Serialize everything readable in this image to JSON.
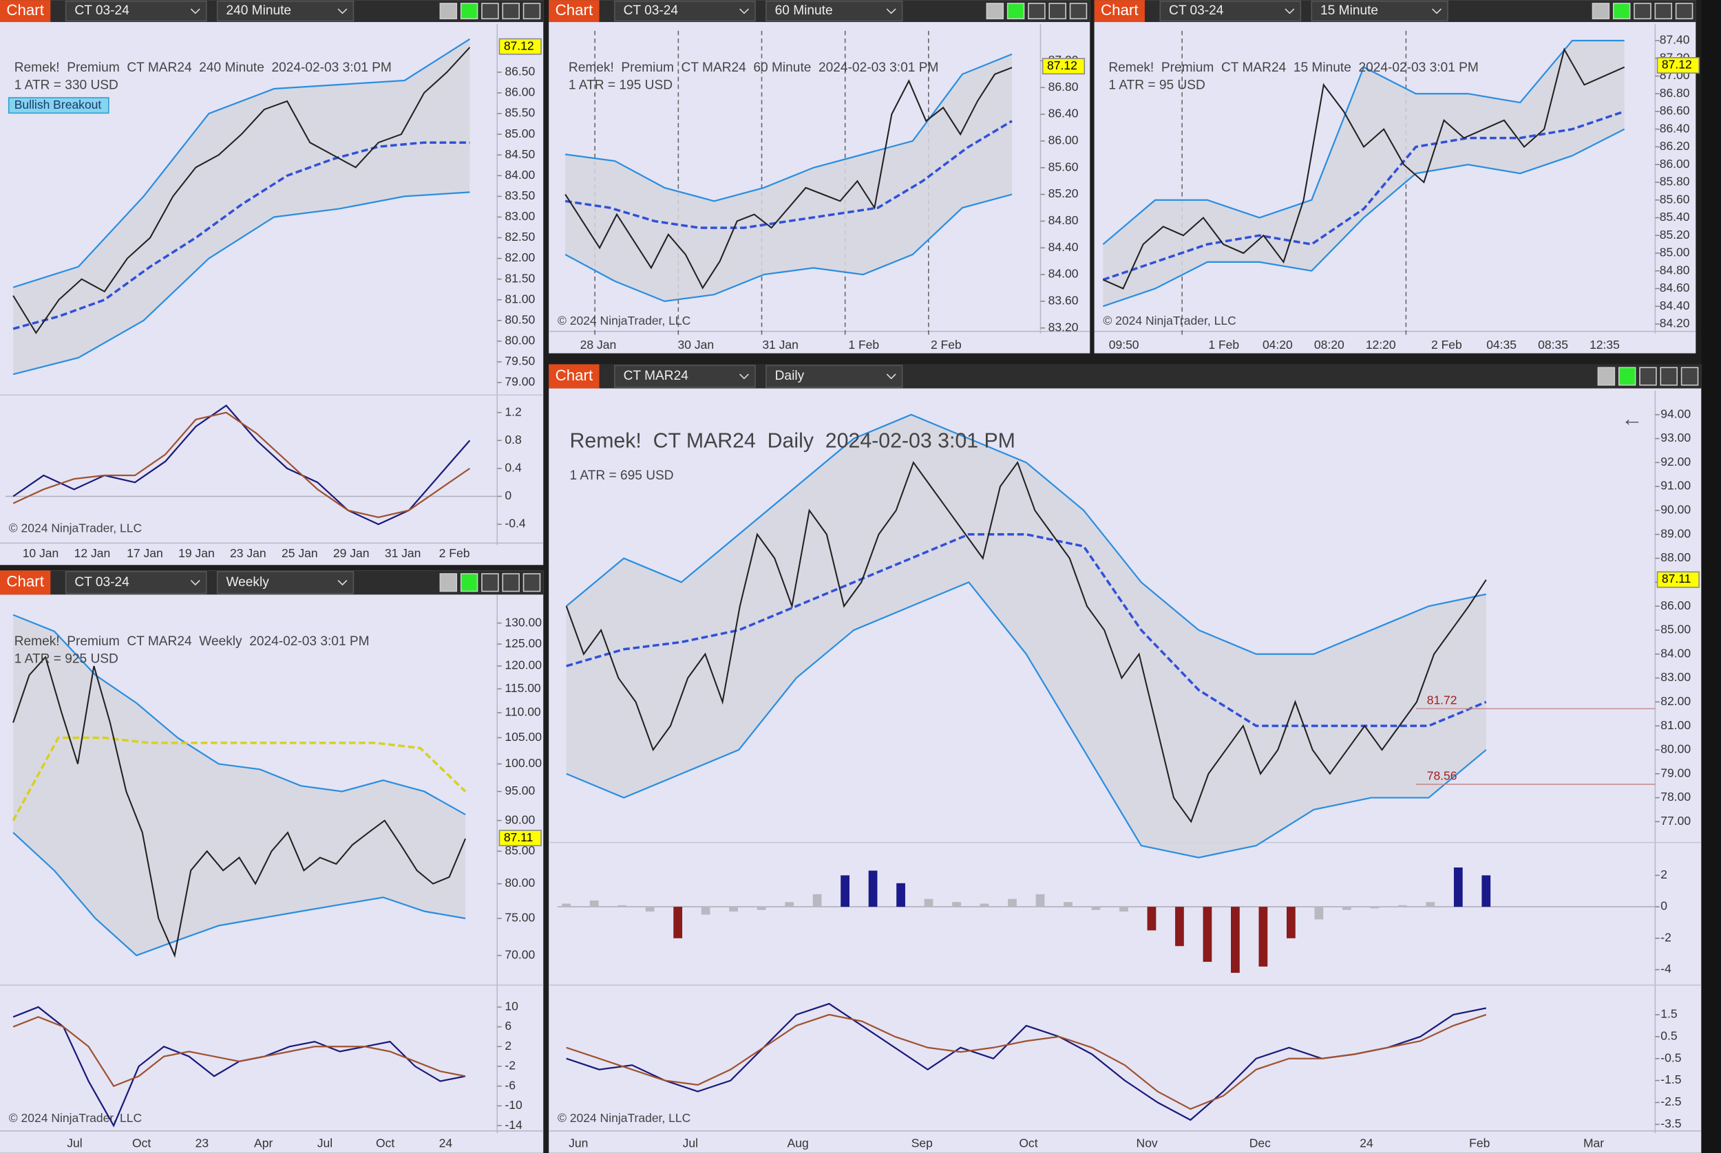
{
  "windows": [
    {
      "button": "Chart",
      "instrument": "CT 03-24",
      "interval": "240 Minute"
    },
    {
      "button": "Chart",
      "instrument": "CT 03-24",
      "interval": "60 Minute"
    },
    {
      "button": "Chart",
      "instrument": "CT 03-24",
      "interval": "15 Minute"
    },
    {
      "button": "Chart",
      "instrument": "CT 03-24",
      "interval": "Weekly"
    },
    {
      "button": "Chart",
      "instrument": "CT MAR24",
      "interval": "Daily"
    }
  ],
  "chart_data": [
    {
      "type": "line",
      "title": "Remek!  Premium  CT MAR24  240 Minute  2024-02-03 3:01 PM",
      "atr": "1 ATR = 330 USD",
      "badge": "Bullish Breakout",
      "copyright": "© 2024 NinjaTrader, LLC",
      "last_price": 87.12,
      "categories": [
        "10 Jan",
        "12 Jan",
        "17 Jan",
        "19 Jan",
        "23 Jan",
        "25 Jan",
        "29 Jan",
        "31 Jan",
        "2 Feb"
      ],
      "ylim": [
        78.7,
        87.5
      ],
      "yticks": [
        {
          "value": 86.5,
          "label": "86.50"
        },
        {
          "value": 86,
          "label": "86.00"
        },
        {
          "value": 85.5,
          "label": "85.50"
        },
        {
          "value": 85,
          "label": "85.00"
        },
        {
          "value": 84.5,
          "label": "84.50"
        },
        {
          "value": 84,
          "label": "84.00"
        },
        {
          "value": 83.5,
          "label": "83.50"
        },
        {
          "value": 83,
          "label": "83.00"
        },
        {
          "value": 82.5,
          "label": "82.50"
        },
        {
          "value": 82,
          "label": "82.00"
        },
        {
          "value": 81.5,
          "label": "81.50"
        },
        {
          "value": 81,
          "label": "81.00"
        },
        {
          "value": 80.5,
          "label": "80.50"
        },
        {
          "value": 80,
          "label": "80.00"
        },
        {
          "value": 79.5,
          "label": "79.50"
        },
        {
          "value": 79,
          "label": "79.00"
        }
      ],
      "price": {
        "color": "#222222",
        "values": [
          81.1,
          80.2,
          81.0,
          81.5,
          81.2,
          82.0,
          82.5,
          83.5,
          84.2,
          84.5,
          85.0,
          85.6,
          85.8,
          84.8,
          84.5,
          84.2,
          84.8,
          85.0,
          86.0,
          86.5,
          87.1
        ]
      },
      "ma": {
        "color": "#3050d8",
        "values": [
          80.3,
          80.6,
          81.0,
          81.8,
          82.5,
          83.3,
          84.0,
          84.4,
          84.7,
          84.8,
          84.8
        ]
      },
      "upper": {
        "color": "#2a8ee0",
        "values": [
          81.3,
          81.8,
          83.5,
          85.5,
          86.1,
          86.2,
          86.3,
          87.3
        ]
      },
      "lower": {
        "color": "#2a8ee0",
        "values": [
          79.2,
          79.6,
          80.5,
          82.0,
          83.0,
          83.2,
          83.5,
          83.6
        ]
      },
      "osc": {
        "ylim": [
          -0.59,
          1.42
        ],
        "yticks": [
          1.2,
          0.8,
          0.4,
          0,
          -0.4
        ],
        "series": [
          {
            "color": "#1a1a7a",
            "values": [
              0.0,
              0.3,
              0.1,
              0.3,
              0.2,
              0.5,
              1.0,
              1.3,
              0.8,
              0.4,
              0.2,
              -0.2,
              -0.4,
              -0.2,
              0.3,
              0.8
            ]
          },
          {
            "color": "#a0522d",
            "values": [
              -0.1,
              0.1,
              0.25,
              0.3,
              0.3,
              0.6,
              1.1,
              1.2,
              0.9,
              0.5,
              0.1,
              -0.2,
              -0.3,
              -0.2,
              0.1,
              0.4
            ]
          }
        ]
      }
    },
    {
      "type": "line",
      "title": "Remek!  Premium  CT MAR24  60 Minute  2024-02-03 3:01 PM",
      "atr": "1 ATR = 195 USD",
      "copyright": "© 2024 NinjaTrader, LLC",
      "last_price": 87.12,
      "categories": [
        "28 Jan",
        "30 Jan",
        "31 Jan",
        "1 Feb",
        "2 Feb"
      ],
      "ylim": [
        83.1,
        87.65
      ],
      "yticks": [
        {
          "value": 87.2,
          "label": "87.20"
        },
        {
          "value": 86.8,
          "label": "86.80"
        },
        {
          "value": 86.4,
          "label": "86.40"
        },
        {
          "value": 86,
          "label": "86.00"
        },
        {
          "value": 85.6,
          "label": "85.60"
        },
        {
          "value": 85.2,
          "label": "85.20"
        },
        {
          "value": 84.8,
          "label": "84.80"
        },
        {
          "value": 84.4,
          "label": "84.40"
        },
        {
          "value": 84,
          "label": "84.00"
        },
        {
          "value": 83.6,
          "label": "83.60"
        },
        {
          "value": 83.2,
          "label": "83.20"
        }
      ],
      "price": {
        "color": "#222222",
        "values": [
          85.2,
          84.8,
          84.4,
          84.9,
          84.5,
          84.1,
          84.6,
          84.3,
          83.8,
          84.2,
          84.8,
          84.9,
          84.7,
          85.0,
          85.3,
          85.2,
          85.1,
          85.4,
          85.0,
          86.4,
          86.9,
          86.3,
          86.5,
          86.1,
          86.6,
          87.0,
          87.1
        ]
      },
      "ma": {
        "color": "#3050d8",
        "values": [
          85.1,
          85.0,
          84.8,
          84.7,
          84.7,
          84.8,
          84.9,
          85.0,
          85.4,
          85.9,
          86.3
        ]
      },
      "upper": {
        "color": "#2a8ee0",
        "values": [
          85.8,
          85.7,
          85.3,
          85.1,
          85.3,
          85.6,
          85.8,
          86.0,
          87.0,
          87.3
        ]
      },
      "lower": {
        "color": "#2a8ee0",
        "values": [
          84.3,
          83.9,
          83.6,
          83.7,
          84.0,
          84.1,
          84.0,
          84.3,
          85.0,
          85.2
        ]
      }
    },
    {
      "type": "line",
      "title": "Remek!  Premium  CT MAR24  15 Minute  2024-02-03 3:01 PM",
      "atr": "1 ATR = 95 USD",
      "copyright": "© 2024 NinjaTrader, LLC",
      "last_price": 87.12,
      "categories": [
        "09:50",
        "1 Feb",
        "04:20",
        "08:20",
        "12:20",
        "2 Feb",
        "04:35",
        "08:35",
        "12:35"
      ],
      "ylim": [
        84.08,
        87.51
      ],
      "yticks": [
        {
          "value": 87.4,
          "label": "87.40"
        },
        {
          "value": 87.2,
          "label": "87.20"
        },
        {
          "value": 87,
          "label": "87.00"
        },
        {
          "value": 86.8,
          "label": "86.80"
        },
        {
          "value": 86.6,
          "label": "86.60"
        },
        {
          "value": 86.4,
          "label": "86.40"
        },
        {
          "value": 86.2,
          "label": "86.20"
        },
        {
          "value": 86,
          "label": "86.00"
        },
        {
          "value": 85.8,
          "label": "85.80"
        },
        {
          "value": 85.6,
          "label": "85.60"
        },
        {
          "value": 85.4,
          "label": "85.40"
        },
        {
          "value": 85.2,
          "label": "85.20"
        },
        {
          "value": 85,
          "label": "85.00"
        },
        {
          "value": 84.8,
          "label": "84.80"
        },
        {
          "value": 84.6,
          "label": "84.60"
        },
        {
          "value": 84.4,
          "label": "84.40"
        },
        {
          "value": 84.2,
          "label": "84.20"
        }
      ],
      "price": {
        "color": "#222222",
        "values": [
          84.7,
          84.6,
          85.1,
          85.3,
          85.2,
          85.4,
          85.1,
          85.0,
          85.2,
          84.9,
          85.6,
          86.9,
          86.6,
          86.2,
          86.4,
          86.0,
          85.8,
          86.5,
          86.3,
          86.4,
          86.5,
          86.2,
          86.4,
          87.3,
          86.9,
          87.0,
          87.1
        ]
      },
      "ma": {
        "color": "#3050d8",
        "values": [
          84.7,
          84.9,
          85.1,
          85.2,
          85.1,
          85.5,
          86.2,
          86.3,
          86.3,
          86.4,
          86.6
        ]
      },
      "upper": {
        "color": "#2a8ee0",
        "values": [
          85.1,
          85.6,
          85.6,
          85.4,
          85.6,
          87.1,
          86.8,
          86.8,
          86.7,
          87.4,
          87.4
        ]
      },
      "lower": {
        "color": "#2a8ee0",
        "values": [
          84.4,
          84.6,
          84.9,
          84.9,
          84.8,
          85.4,
          85.9,
          86.0,
          85.9,
          86.1,
          86.4
        ]
      }
    },
    {
      "type": "line",
      "title": "Remek!  Premium  CT MAR24  Weekly  2024-02-03 3:01 PM",
      "atr": "1 ATR = 925 USD",
      "copyright": "© 2024 NinjaTrader, LLC",
      "last_price": 87.11,
      "log_scale": true,
      "categories": [
        "Jul",
        "Oct",
        "23",
        "Apr",
        "Jul",
        "Oct",
        "24"
      ],
      "ylim": [
        66.65,
        135.4
      ],
      "yticks": [
        {
          "value": 130,
          "label": "130.00"
        },
        {
          "value": 125,
          "label": "125.00"
        },
        {
          "value": 120,
          "label": "120.00"
        },
        {
          "value": 115,
          "label": "115.00"
        },
        {
          "value": 110,
          "label": "110.00"
        },
        {
          "value": 105,
          "label": "105.00"
        },
        {
          "value": 100,
          "label": "100.00"
        },
        {
          "value": 95,
          "label": "95.00"
        },
        {
          "value": 90,
          "label": "90.00"
        },
        {
          "value": 85,
          "label": "85.00"
        },
        {
          "value": 80,
          "label": "80.00"
        },
        {
          "value": 75,
          "label": "75.00"
        },
        {
          "value": 70,
          "label": "70.00"
        }
      ],
      "price": {
        "color": "#222222",
        "values": [
          108,
          118,
          122,
          110,
          100,
          120,
          108,
          95,
          88,
          75,
          70,
          82,
          85,
          82,
          84,
          80,
          85,
          88,
          82,
          84,
          83,
          86,
          88,
          90,
          86,
          82,
          80,
          81,
          87
        ]
      },
      "ma": {
        "color": "#d8d020",
        "values": [
          90,
          105,
          105,
          104,
          104,
          104,
          104,
          104,
          104,
          103,
          95
        ]
      },
      "upper": {
        "color": "#2a8ee0",
        "values": [
          132,
          128,
          118,
          112,
          105,
          100,
          99,
          96,
          95,
          97,
          95,
          91
        ]
      },
      "lower": {
        "color": "#2a8ee0",
        "values": [
          88,
          82,
          75,
          70,
          72,
          74,
          75,
          76,
          77,
          78,
          76,
          75
        ]
      },
      "osc": {
        "ylim": [
          -15.3,
          14
        ],
        "yticks": [
          10,
          6,
          2,
          -2,
          -6,
          -10,
          -14
        ],
        "series": [
          {
            "color": "#1a1a7a",
            "values": [
              8,
              10,
              6,
              -5,
              -14,
              -2,
              2,
              0,
              -4,
              -1,
              0,
              2,
              3,
              1,
              2,
              3,
              -2,
              -5,
              -4
            ]
          },
          {
            "color": "#a0522d",
            "values": [
              6,
              8,
              6,
              2,
              -6,
              -4,
              0,
              1,
              0,
              -1,
              0,
              1,
              2,
              2,
              2,
              1,
              -1,
              -3,
              -4
            ]
          }
        ]
      }
    },
    {
      "type": "line",
      "title": "Remek!  CT MAR24  Daily  2024-02-03 3:01 PM",
      "atr": "1 ATR = 695 USD",
      "copyright": "© 2024 NinjaTrader, LLC",
      "last_price": 87.11,
      "levels": [
        81.72,
        78.56
      ],
      "categories": [
        "Jun",
        "Jul",
        "Aug",
        "Sep",
        "Oct",
        "Nov",
        "Dec",
        "24",
        "Feb",
        "Mar"
      ],
      "ylim": [
        76.13,
        94.73
      ],
      "yticks": [
        {
          "value": 94,
          "label": "94.00"
        },
        {
          "value": 93,
          "label": "93.00"
        },
        {
          "value": 92,
          "label": "92.00"
        },
        {
          "value": 91,
          "label": "91.00"
        },
        {
          "value": 90,
          "label": "90.00"
        },
        {
          "value": 89,
          "label": "89.00"
        },
        {
          "value": 88,
          "label": "88.00"
        },
        {
          "value": 87,
          "label": "87.00"
        },
        {
          "value": 86,
          "label": "86.00"
        },
        {
          "value": 85,
          "label": "85.00"
        },
        {
          "value": 84,
          "label": "84.00"
        },
        {
          "value": 83,
          "label": "83.00"
        },
        {
          "value": 82,
          "label": "82.00"
        },
        {
          "value": 81,
          "label": "81.00"
        },
        {
          "value": 80,
          "label": "80.00"
        },
        {
          "value": 79,
          "label": "79.00"
        },
        {
          "value": 78,
          "label": "78.00"
        },
        {
          "value": 77,
          "label": "77.00"
        }
      ],
      "price": {
        "color": "#222222",
        "values": [
          86,
          84,
          85,
          83,
          82,
          80,
          81,
          83,
          84,
          82,
          86,
          89,
          88,
          86,
          90,
          89,
          86,
          87,
          89,
          90,
          92,
          91,
          90,
          89,
          88,
          91,
          92,
          90,
          89,
          88,
          86,
          85,
          83,
          84,
          81,
          78,
          77,
          79,
          80,
          81,
          79,
          80,
          82,
          80,
          79,
          80,
          81,
          80,
          81,
          82,
          84,
          85,
          86,
          87.1
        ]
      },
      "ma": {
        "color": "#3050d8",
        "values": [
          83.5,
          84.2,
          84.5,
          85,
          86,
          87,
          88,
          89,
          89,
          88.5,
          85,
          82.5,
          81,
          81,
          81,
          81,
          82
        ]
      },
      "upper": {
        "color": "#2a8ee0",
        "values": [
          86,
          88,
          87,
          89,
          91,
          93,
          94,
          93,
          92,
          90,
          87,
          85,
          84,
          84,
          85,
          86,
          86.5
        ]
      },
      "lower": {
        "color": "#2a8ee0",
        "values": [
          79,
          78,
          79,
          80,
          83,
          85,
          86,
          87,
          84,
          80,
          76,
          75.5,
          76,
          77.5,
          78,
          78,
          80
        ]
      },
      "hist": {
        "ylim": [
          -4.77,
          3.95
        ],
        "yticks": [
          2,
          0,
          -2,
          -4
        ],
        "values": [
          0.2,
          0.4,
          0.1,
          -0.3,
          -2.0,
          -0.5,
          -0.3,
          -0.2,
          0.3,
          0.8,
          2.0,
          2.3,
          1.5,
          0.5,
          0.3,
          0.2,
          0.5,
          0.8,
          0.3,
          -0.2,
          -0.3,
          -1.5,
          -2.5,
          -3.5,
          -4.2,
          -3.8,
          -2.0,
          -0.8,
          -0.2,
          -0.1,
          0.1,
          0.3,
          2.5,
          2.0
        ]
      },
      "osc": {
        "ylim": [
          -3.85,
          2.75
        ],
        "yticks": [
          1.5,
          0.5,
          -0.5,
          -1.5,
          -2.5,
          -3.5
        ],
        "series": [
          {
            "color": "#1a1a7a",
            "values": [
              -0.5,
              -1,
              -0.8,
              -1.5,
              -2,
              -1.5,
              0,
              1.5,
              2,
              1,
              0,
              -1,
              0,
              -0.5,
              1,
              0.5,
              -0.3,
              -1.5,
              -2.5,
              -3.3,
              -2,
              -0.5,
              0,
              -0.5,
              -0.3,
              0,
              0.5,
              1.5,
              1.8
            ]
          },
          {
            "color": "#a0522d",
            "values": [
              0,
              -0.5,
              -1,
              -1.5,
              -1.7,
              -1,
              0,
              1,
              1.5,
              1.2,
              0.5,
              0,
              -0.2,
              0,
              0.3,
              0.5,
              0,
              -0.8,
              -2,
              -2.8,
              -2.2,
              -1,
              -0.5,
              -0.5,
              -0.3,
              0,
              0.3,
              1,
              1.5
            ]
          }
        ]
      }
    }
  ]
}
